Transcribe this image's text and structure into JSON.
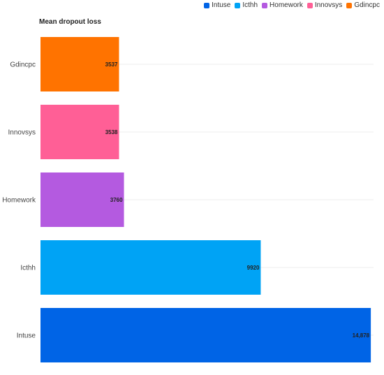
{
  "chart_data": {
    "type": "bar",
    "orientation": "horizontal",
    "title": "Mean dropout loss",
    "categories": [
      "Gdincpc",
      "Innovsys",
      "Homework",
      "Icthh",
      "Intuse"
    ],
    "values": [
      3537,
      3538,
      3760,
      9920,
      14878
    ],
    "value_labels": [
      "3537",
      "3538",
      "3760",
      "9920",
      "14,878"
    ],
    "colors": [
      "#ff7300",
      "#ff5f96",
      "#b45ae0",
      "#00a3f5",
      "#0064e6"
    ],
    "xlim": [
      0,
      15000
    ],
    "grid": true,
    "legend": {
      "placement": "top-right",
      "entries": [
        {
          "label": "Intuse",
          "color": "#0064e6"
        },
        {
          "label": "Icthh",
          "color": "#00a3f5"
        },
        {
          "label": "Homework",
          "color": "#b45ae0"
        },
        {
          "label": "Innovsys",
          "color": "#ff5f96"
        },
        {
          "label": "Gdincpc",
          "color": "#ff7300"
        }
      ]
    }
  }
}
